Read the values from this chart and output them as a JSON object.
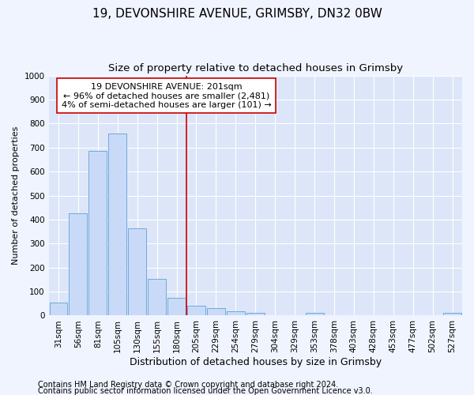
{
  "title1": "19, DEVONSHIRE AVENUE, GRIMSBY, DN32 0BW",
  "title2": "Size of property relative to detached houses in Grimsby",
  "xlabel": "Distribution of detached houses by size in Grimsby",
  "ylabel": "Number of detached properties",
  "categories": [
    "31sqm",
    "56sqm",
    "81sqm",
    "105sqm",
    "130sqm",
    "155sqm",
    "180sqm",
    "205sqm",
    "229sqm",
    "254sqm",
    "279sqm",
    "304sqm",
    "329sqm",
    "353sqm",
    "378sqm",
    "403sqm",
    "428sqm",
    "453sqm",
    "477sqm",
    "502sqm",
    "527sqm"
  ],
  "values": [
    55,
    425,
    685,
    758,
    365,
    153,
    75,
    40,
    32,
    18,
    13,
    0,
    0,
    13,
    0,
    0,
    0,
    0,
    0,
    0,
    12
  ],
  "bar_color": "#c9daf8",
  "bar_edge_color": "#6fa8dc",
  "vline_x_idx": 7,
  "vline_color": "#cc0000",
  "annotation_text": "19 DEVONSHIRE AVENUE: 201sqm\n← 96% of detached houses are smaller (2,481)\n4% of semi-detached houses are larger (101) →",
  "annotation_box_color": "#ffffff",
  "annotation_box_edge": "#cc0000",
  "ylim": [
    0,
    1000
  ],
  "yticks": [
    0,
    100,
    200,
    300,
    400,
    500,
    600,
    700,
    800,
    900,
    1000
  ],
  "footer1": "Contains HM Land Registry data © Crown copyright and database right 2024.",
  "footer2": "Contains public sector information licensed under the Open Government Licence v3.0.",
  "fig_background": "#f0f4ff",
  "plot_background": "#dce6f8",
  "title1_fontsize": 11,
  "title2_fontsize": 9.5,
  "xlabel_fontsize": 9,
  "ylabel_fontsize": 8,
  "tick_fontsize": 7.5,
  "footer_fontsize": 7
}
